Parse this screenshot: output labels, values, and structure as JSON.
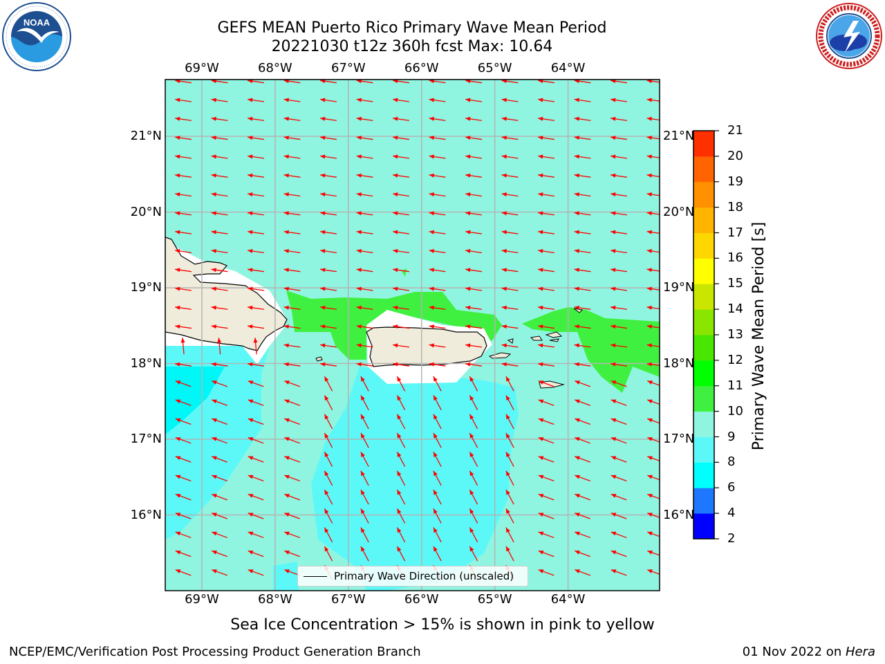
{
  "title": {
    "line1": "GEFS MEAN Puerto Rico Primary Wave Mean Period",
    "line2": "20221030 t12z 360h fcst   Max: 10.64"
  },
  "logos": {
    "left": {
      "text": "NOAA",
      "ring_text": "NATIONAL OCEANIC AND ATMOSPHERIC ADMINISTRATION · U.S. DEPARTMENT OF COMMERCE"
    },
    "right": {
      "ring_text": "NATIONAL WEATHER SERVICE"
    }
  },
  "map": {
    "lon_range": [
      -69.5,
      -62.75
    ],
    "lat_range": [
      15.0,
      21.75
    ],
    "lon_ticks": [
      "69°W",
      "68°W",
      "67°W",
      "66°W",
      "65°W",
      "64°W"
    ],
    "lon_values": [
      -69,
      -68,
      -67,
      -66,
      -65,
      -64
    ],
    "lat_ticks": [
      "21°N",
      "20°N",
      "19°N",
      "18°N",
      "17°N",
      "16°N"
    ],
    "lat_values": [
      21,
      20,
      19,
      18,
      17,
      16
    ],
    "grid": true,
    "ocean_color": "#8ff5e0",
    "band_8_9_color": "#5cf8f8",
    "band_10_11_color": "#40f040",
    "band_6_8_color": "#00f7f7",
    "land_color": "#efecdc",
    "arrow_color": "#ff0000",
    "legend_label": "Primary Wave Direction (unscaled)"
  },
  "colorbar": {
    "label": "Primary Wave Mean Period [s]",
    "ticks": [
      "2",
      "4",
      "6",
      "8",
      "9",
      "10",
      "11",
      "12",
      "13",
      "14",
      "15",
      "16",
      "17",
      "18",
      "19",
      "20",
      "21"
    ],
    "colors": [
      "#0000ff",
      "#1e78ff",
      "#00ffff",
      "#5cf8f8",
      "#8ff5e0",
      "#40f040",
      "#00ff00",
      "#48e600",
      "#8ae600",
      "#c8e600",
      "#ffff00",
      "#ffd700",
      "#ffb400",
      "#ff9000",
      "#ff6400",
      "#ff3000",
      "#ff0000"
    ]
  },
  "caption": "Sea Ice Concentration > 15% is shown in pink to yellow",
  "footer": {
    "left": "NCEP/EMC/Verification Post Processing Product Generation Branch",
    "right_date": "01 Nov 2022 on ",
    "right_host": "Hera"
  }
}
